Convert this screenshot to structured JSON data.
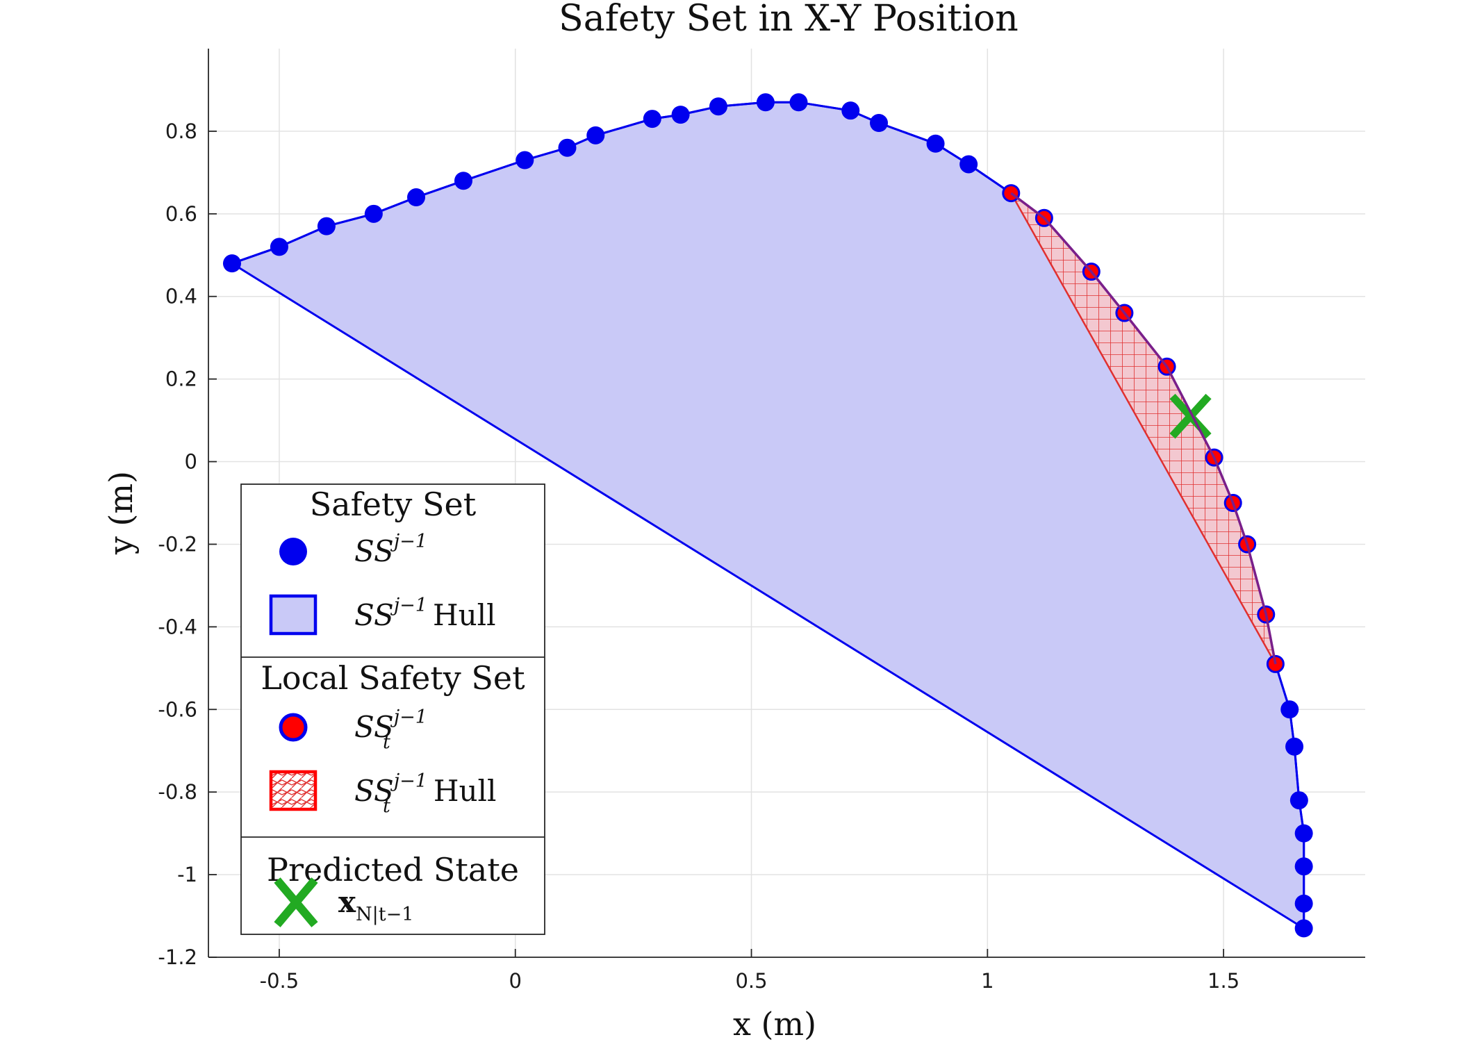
{
  "chart_data": {
    "type": "scatter",
    "title": "Safety Set in X-Y Position",
    "xlabel": "x (m)",
    "ylabel": "y (m)",
    "xlim": [
      -0.65,
      1.8
    ],
    "ylim": [
      -1.2,
      1.0
    ],
    "xticks": [
      -0.5,
      0,
      0.5,
      1,
      1.5
    ],
    "xtick_labels": [
      "-0.5",
      "0",
      "0.5",
      "1",
      "1.5"
    ],
    "yticks": [
      -1.2,
      -1,
      -0.8,
      -0.6,
      -0.4,
      -0.2,
      0,
      0.2,
      0.4,
      0.6,
      0.8
    ],
    "ytick_labels": [
      "-1.2",
      "-1",
      "-0.8",
      "-0.6",
      "-0.4",
      "-0.2",
      "0",
      "0.2",
      "0.4",
      "0.6",
      "0.8"
    ],
    "grid": true,
    "colors": {
      "safety_set": "#0000ee",
      "hull_fill": "#c9c9f7",
      "local_set": "#ff0000",
      "local_hull": "#e03030",
      "predicted": "#22aa22"
    },
    "series": [
      {
        "name": "SS^{j-1}",
        "style": "blue-dots-line",
        "x": [
          -0.6,
          -0.5,
          -0.4,
          -0.3,
          -0.21,
          -0.11,
          0.02,
          0.11,
          0.17,
          0.29,
          0.35,
          0.43,
          0.53,
          0.6,
          0.71,
          0.77,
          0.89,
          0.96,
          1.05,
          1.12,
          1.22,
          1.29,
          1.38,
          1.48,
          1.52,
          1.55,
          1.59,
          1.61,
          1.64,
          1.65,
          1.66,
          1.67,
          1.67,
          1.67,
          1.67
        ],
        "y": [
          0.48,
          0.52,
          0.57,
          0.6,
          0.64,
          0.68,
          0.73,
          0.76,
          0.79,
          0.83,
          0.84,
          0.86,
          0.87,
          0.87,
          0.85,
          0.82,
          0.77,
          0.72,
          0.65,
          0.59,
          0.46,
          0.36,
          0.23,
          0.01,
          -0.1,
          -0.2,
          -0.37,
          -0.49,
          -0.6,
          -0.69,
          -0.82,
          -0.9,
          -0.98,
          -1.07,
          -1.13
        ]
      },
      {
        "name": "SS_t^{j-1}",
        "style": "red-dots-blue-edge",
        "x": [
          1.05,
          1.12,
          1.22,
          1.29,
          1.38,
          1.48,
          1.52,
          1.55,
          1.59,
          1.61
        ],
        "y": [
          0.65,
          0.59,
          0.46,
          0.36,
          0.23,
          0.01,
          -0.1,
          -0.2,
          -0.37,
          -0.49
        ]
      },
      {
        "name": "x_{N|t-1}",
        "style": "green-x",
        "x": [
          1.43
        ],
        "y": [
          0.11
        ]
      }
    ],
    "legend": {
      "position": "lower-left",
      "groups": [
        {
          "heading": "Safety Set",
          "entries": [
            {
              "base": "SS",
              "sup": "j−1",
              "sub": "",
              "suffix": ""
            },
            {
              "base": "SS",
              "sup": "j−1",
              "sub": "",
              "suffix": "Hull"
            }
          ]
        },
        {
          "heading": "Local Safety Set",
          "entries": [
            {
              "base": "SS",
              "sup": "j−1",
              "sub": "t",
              "suffix": ""
            },
            {
              "base": "SS",
              "sup": "j−1",
              "sub": "t",
              "suffix": "Hull"
            }
          ]
        },
        {
          "heading": "Predicted State",
          "entries": [
            {
              "base": "x",
              "sup": "",
              "sub": "N|t−1",
              "suffix": ""
            }
          ]
        }
      ]
    }
  }
}
